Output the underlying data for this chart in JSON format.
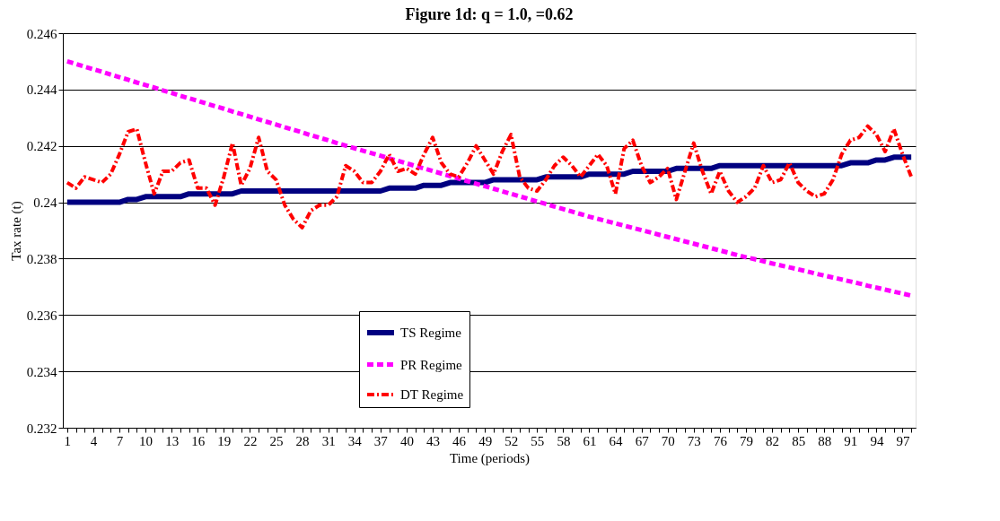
{
  "chart_data": {
    "type": "line",
    "title": "Figure 1d: q = 1.0,    =0.62",
    "xlabel": "Time (periods)",
    "ylabel": "Tax rate (t)",
    "categories": [
      "1",
      null,
      null,
      "4",
      null,
      null,
      "7",
      null,
      null,
      "10",
      null,
      null,
      "13",
      null,
      null,
      "16",
      null,
      null,
      "19",
      null,
      null,
      "22",
      null,
      null,
      "25",
      null,
      null,
      "28",
      null,
      null,
      "31",
      null,
      null,
      "34",
      null,
      null,
      "37",
      null,
      null,
      "40",
      null,
      null,
      "43",
      null,
      null,
      "46",
      null,
      null,
      "49",
      null,
      null,
      "52",
      null,
      null,
      "55",
      null,
      null,
      "58",
      null,
      null,
      "61",
      null,
      null,
      "64",
      null,
      null,
      "67",
      null,
      null,
      "70",
      null,
      null,
      "73",
      null,
      null,
      "76",
      null,
      null,
      "79",
      null,
      null,
      "82",
      null,
      null,
      "85",
      null,
      null,
      "88",
      null,
      null,
      "91",
      null,
      null,
      "94",
      null,
      null,
      "97",
      null
    ],
    "series": [
      {
        "name": "TS Regime",
        "color": "#000080",
        "line_style": "solid",
        "values": [
          0.24,
          0.24,
          0.24,
          0.24,
          0.24,
          0.24,
          0.24,
          0.2401,
          0.2401,
          0.2402,
          0.2402,
          0.2402,
          0.2402,
          0.2402,
          0.2403,
          0.2403,
          0.2403,
          0.2403,
          0.2403,
          0.2403,
          0.2404,
          0.2404,
          0.2404,
          0.2404,
          0.2404,
          0.2404,
          0.2404,
          0.2404,
          0.2404,
          0.2404,
          0.2404,
          0.2404,
          0.2404,
          0.2404,
          0.2404,
          0.2404,
          0.2404,
          0.2405,
          0.2405,
          0.2405,
          0.2405,
          0.2406,
          0.2406,
          0.2406,
          0.2407,
          0.2407,
          0.2407,
          0.2407,
          0.2407,
          0.2408,
          0.2408,
          0.2408,
          0.2408,
          0.2408,
          0.2408,
          0.2409,
          0.2409,
          0.2409,
          0.2409,
          0.2409,
          0.241,
          0.241,
          0.241,
          0.241,
          0.241,
          0.2411,
          0.2411,
          0.2411,
          0.2411,
          0.2411,
          0.2412,
          0.2412,
          0.2412,
          0.2412,
          0.2412,
          0.2413,
          0.2413,
          0.2413,
          0.2413,
          0.2413,
          0.2413,
          0.2413,
          0.2413,
          0.2413,
          0.2413,
          0.2413,
          0.2413,
          0.2413,
          0.2413,
          0.2413,
          0.2414,
          0.2414,
          0.2414,
          0.2415,
          0.2415,
          0.2416,
          0.2416,
          0.2416
        ]
      },
      {
        "name": "PR Regime",
        "color": "#ff00ff",
        "line_style": "dashed",
        "values": [
          0.245,
          0.24491,
          0.24481,
          0.24472,
          0.24463,
          0.24453,
          0.24444,
          0.24435,
          0.24425,
          0.24416,
          0.24407,
          0.24397,
          0.24388,
          0.24378,
          0.24369,
          0.2436,
          0.2435,
          0.24341,
          0.24332,
          0.24322,
          0.24313,
          0.24304,
          0.24294,
          0.24285,
          0.24276,
          0.24266,
          0.24257,
          0.24248,
          0.24238,
          0.24229,
          0.2422,
          0.2421,
          0.24201,
          0.24192,
          0.24183,
          0.24174,
          0.24165,
          0.24156,
          0.24147,
          0.24138,
          0.24129,
          0.2412,
          0.24111,
          0.24102,
          0.24093,
          0.24084,
          0.24075,
          0.24066,
          0.24057,
          0.24048,
          0.24039,
          0.2403,
          0.24021,
          0.24012,
          0.24003,
          0.23994,
          0.23985,
          0.23976,
          0.23967,
          0.23958,
          0.23949,
          0.23941,
          0.23933,
          0.23925,
          0.23917,
          0.23909,
          0.23901,
          0.23893,
          0.23885,
          0.23877,
          0.23869,
          0.23861,
          0.23853,
          0.23845,
          0.23837,
          0.23829,
          0.23821,
          0.23813,
          0.23805,
          0.23798,
          0.23791,
          0.23783,
          0.23776,
          0.23769,
          0.23762,
          0.23755,
          0.23747,
          0.2374,
          0.23733,
          0.23726,
          0.23719,
          0.23712,
          0.23704,
          0.23697,
          0.2369,
          0.23683,
          0.23676,
          0.23669
        ]
      },
      {
        "name": "DT Regime",
        "color": "#ff0000",
        "line_style": "dashdot",
        "values": [
          0.2407,
          0.2405,
          0.2409,
          0.2408,
          0.2407,
          0.241,
          0.2417,
          0.2425,
          0.2426,
          0.2414,
          0.2403,
          0.2411,
          0.2411,
          0.2414,
          0.2415,
          0.2405,
          0.2405,
          0.2399,
          0.2409,
          0.2421,
          0.2406,
          0.2412,
          0.2423,
          0.2411,
          0.2408,
          0.2399,
          0.2394,
          0.2391,
          0.2397,
          0.2399,
          0.2399,
          0.2402,
          0.2413,
          0.2411,
          0.2407,
          0.2407,
          0.2411,
          0.2417,
          0.2411,
          0.2412,
          0.241,
          0.2417,
          0.2423,
          0.2414,
          0.241,
          0.2409,
          0.2414,
          0.242,
          0.2415,
          0.241,
          0.2418,
          0.2424,
          0.2409,
          0.2405,
          0.2404,
          0.2408,
          0.2413,
          0.2416,
          0.2413,
          0.2409,
          0.2413,
          0.2417,
          0.2413,
          0.2403,
          0.2419,
          0.2422,
          0.2413,
          0.2407,
          0.2409,
          0.2412,
          0.2401,
          0.2411,
          0.2421,
          0.2411,
          0.2403,
          0.2411,
          0.2404,
          0.24,
          0.2402,
          0.2405,
          0.2413,
          0.2407,
          0.2408,
          0.2414,
          0.2407,
          0.2404,
          0.2402,
          0.2403,
          0.2408,
          0.2417,
          0.2422,
          0.2423,
          0.2427,
          0.2424,
          0.2418,
          0.2426,
          0.2417,
          0.2409
        ]
      }
    ],
    "ylim": [
      0.232,
      0.246
    ],
    "yticks": [
      0.232,
      0.234,
      0.236,
      0.238,
      0.24,
      0.242,
      0.244,
      0.246
    ],
    "grid": "y",
    "legend": "bottom",
    "marker": "none"
  }
}
